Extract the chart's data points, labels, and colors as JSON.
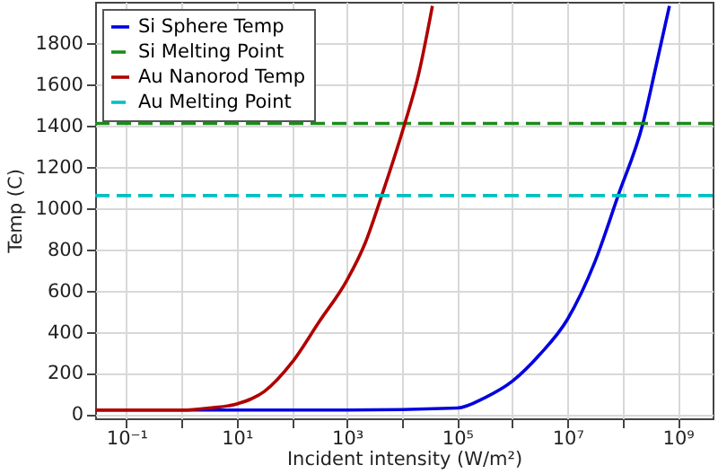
{
  "chart_data": {
    "type": "line",
    "xlabel": "Incident intensity (W/m²)",
    "ylabel": "Temp (C)",
    "log": "x",
    "grid": true,
    "legend": "top left",
    "xlim": [
      0.027,
      4300000000.0
    ],
    "ylim": [
      -20,
      2000
    ],
    "xticks": [
      {
        "value": 0.1,
        "label": "10⁻¹"
      },
      {
        "value": 1,
        "label": null
      },
      {
        "value": 10,
        "label": "10¹"
      },
      {
        "value": 100,
        "label": null
      },
      {
        "value": 1000,
        "label": "10³"
      },
      {
        "value": 10000,
        "label": null
      },
      {
        "value": 100000,
        "label": "10⁵"
      },
      {
        "value": 1000000,
        "label": null
      },
      {
        "value": 10000000,
        "label": "10⁷"
      },
      {
        "value": 100000000,
        "label": null
      },
      {
        "value": 1000000000,
        "label": "10⁹"
      }
    ],
    "yticks": [
      0,
      200,
      400,
      600,
      800,
      1000,
      1200,
      1400,
      1600,
      1800
    ],
    "series": [
      {
        "name": "Si Sphere Temp",
        "color": "#0000e0",
        "line_style": "solid",
        "x": [
          0.027,
          1000,
          100000,
          316000,
          1000000,
          3160000,
          10000000,
          31600000,
          83000000,
          234000000,
          398000000,
          708000000
        ],
        "values": [
          20,
          20,
          30,
          80,
          160,
          290,
          460,
          740,
          1060,
          1410,
          1680,
          1980
        ]
      },
      {
        "name": "Si Melting Point",
        "color": "#1a8c1a",
        "line_style": "dashed",
        "x": [
          0.027,
          4300000000.0
        ],
        "values": [
          1410,
          1410
        ]
      },
      {
        "name": "Au Nanorod Temp",
        "color": "#b00000",
        "line_style": "solid",
        "x": [
          0.027,
          0.1,
          1,
          3.16,
          10,
          31.6,
          100,
          316,
          1000,
          2140,
          4270,
          11200,
          20000,
          35500
        ],
        "values": [
          20,
          20,
          20,
          30,
          50,
          110,
          250,
          450,
          650,
          830,
          1060,
          1410,
          1650,
          1980
        ]
      },
      {
        "name": "Au Melting Point",
        "color": "#00c0c0",
        "line_style": "dashed",
        "x": [
          0.027,
          4300000000.0
        ],
        "values": [
          1060,
          1060
        ]
      }
    ]
  }
}
